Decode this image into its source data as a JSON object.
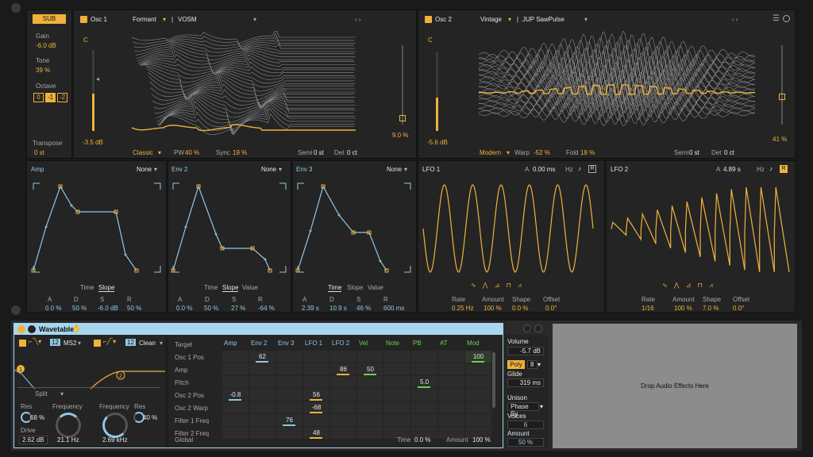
{
  "colors": {
    "accent": "#f0b23b",
    "envline": "#8fc7e6",
    "bg": "#242424",
    "device_header": "#a8d6ef",
    "green": "#6fd04a"
  },
  "sub": {
    "label": "SUB",
    "gain_label": "Gain",
    "gain": "-6.0 dB",
    "tone_label": "Tone",
    "tone": "39 %",
    "octave_label": "Octave",
    "octaves": [
      "0",
      "-1",
      "-2"
    ],
    "transpose_label": "Transpose",
    "transpose": "0 st"
  },
  "osc1": {
    "title": "Osc 1",
    "category": "Formant",
    "wavetable": "VOSM",
    "note": "C",
    "level": "-3.5 dB",
    "mode": "Classic",
    "pw_label": "PW",
    "pw": "40 %",
    "sync_label": "Sync",
    "sync": "19 %",
    "semi_label": "Semi",
    "semi": "0 st",
    "det_label": "Det",
    "det": "0 ct",
    "pan_value": "9.0 %",
    "level_fill": 0.46
  },
  "osc2": {
    "title": "Osc 2",
    "category": "Vintage",
    "wavetable": "JUP SawPulse",
    "note": "C",
    "level": "-5.6 dB",
    "mode": "Modern",
    "warp_label": "Warp",
    "warp": "-52 %",
    "fold_label": "Fold",
    "fold": "18 %",
    "semi_label": "Semi",
    "semi": "0 st",
    "det_label": "Det",
    "det": "0 ct",
    "pan_value": "41 %",
    "level_fill": 0.42
  },
  "envs": [
    {
      "title": "Amp",
      "target": "None",
      "tabs": [
        "Time",
        "Slope"
      ],
      "active_tab": "Slope",
      "params": [
        {
          "l": "A",
          "v": "0.0 %"
        },
        {
          "l": "D",
          "v": "50 %"
        },
        {
          "l": "S",
          "v": "-6.0 dB"
        },
        {
          "l": "R",
          "v": "50 %"
        }
      ]
    },
    {
      "title": "Env 2",
      "target": "None",
      "tabs": [
        "Time",
        "Slope",
        "Value"
      ],
      "active_tab": "Slope",
      "params": [
        {
          "l": "A",
          "v": "0.0 %"
        },
        {
          "l": "D",
          "v": "50 %"
        },
        {
          "l": "S",
          "v": "27 %"
        },
        {
          "l": "R",
          "v": "-64 %"
        }
      ]
    },
    {
      "title": "Env 3",
      "target": "None",
      "tabs": [
        "Time",
        "Slope",
        "Value"
      ],
      "active_tab": "Time",
      "params": [
        {
          "l": "A",
          "v": "2.39 s"
        },
        {
          "l": "D",
          "v": "10.9 s"
        },
        {
          "l": "S",
          "v": "46 %"
        },
        {
          "l": "R",
          "v": "600 ms"
        }
      ]
    }
  ],
  "lfo1": {
    "title": "LFO 1",
    "a_label": "A",
    "a": "0.00 ms",
    "hz_label": "Hz",
    "r_label": "R",
    "rate_label": "Rate",
    "rate": "0.25 Hz",
    "amount_label": "Amount",
    "amount": "100 %",
    "shape_label": "Shape",
    "shape": "0.0 %",
    "offset_label": "Offset",
    "offset": "0.0°"
  },
  "lfo2": {
    "title": "LFO 2",
    "a_label": "A",
    "a": "4.89 s",
    "hz_label": "Hz",
    "r_label": "R",
    "rate_label": "Rate",
    "rate": "1/16",
    "amount_label": "Amount",
    "amount": "100 %",
    "shape_label": "Shape",
    "shape": "7.0 %",
    "offset_label": "Offset",
    "offset": "0.0°"
  },
  "device": {
    "title": "Wavetable"
  },
  "filters": {
    "f1_num": "12",
    "f1_type": "MS2",
    "f2_num": "12",
    "f2_type": "Clean",
    "routing": "Split",
    "res_label": "Res",
    "res1": "68 %",
    "freq_label": "Frequency",
    "freq1": "21.1 Hz",
    "drive_label": "Drive",
    "drive": "2.62 dB",
    "freq2": "2.69 kHz",
    "res2": "40 %"
  },
  "matrix": {
    "target_label": "Target",
    "sources": [
      "Amp",
      "Env 2",
      "Env 3",
      "LFO 1",
      "LFO 2",
      "Vel",
      "Note",
      "PB",
      "AT",
      "Mod"
    ],
    "rows": [
      "Osc 1 Pos",
      "Amp",
      "Pitch",
      "Osc 2 Pos",
      "Osc 2 Warp",
      "Filter 1 Freq",
      "Filter 2 Freq"
    ],
    "values": [
      {
        "r": 0,
        "c": 1,
        "v": "62"
      },
      {
        "r": 0,
        "c": 9,
        "v": "100"
      },
      {
        "r": 1,
        "c": 4,
        "v": "86"
      },
      {
        "r": 1,
        "c": 5,
        "v": "50"
      },
      {
        "r": 2,
        "c": 7,
        "v": "5.0"
      },
      {
        "r": 3,
        "c": 0,
        "v": "-0.8"
      },
      {
        "r": 3,
        "c": 3,
        "v": "56"
      },
      {
        "r": 4,
        "c": 3,
        "v": "-68"
      },
      {
        "r": 5,
        "c": 2,
        "v": "76"
      },
      {
        "r": 6,
        "c": 3,
        "v": "48"
      }
    ],
    "global_label": "Global",
    "time_label": "Time",
    "time": "0.0 %",
    "amount_label": "Amount",
    "amount": "100 %"
  },
  "voice": {
    "volume_label": "Volume",
    "volume": "-5.7 dB",
    "poly": "Poly",
    "voices_count": "8",
    "glide_label": "Glide",
    "glide": "319 ms",
    "unison_label": "Unison",
    "unison": "Phase Sy",
    "voices_label": "Voices",
    "voices": "6",
    "amount_label": "Amount",
    "amount": "50 %"
  },
  "drop": {
    "text": "Drop Audio Effects Here"
  }
}
